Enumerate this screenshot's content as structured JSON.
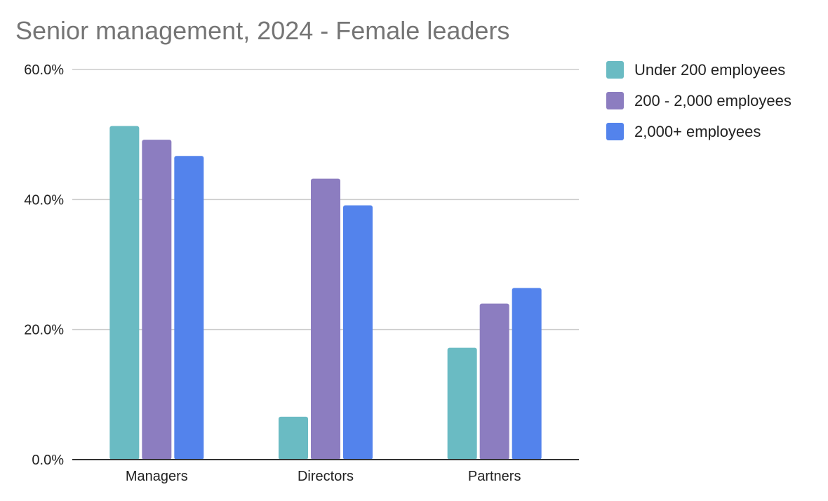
{
  "chart_data": {
    "type": "bar",
    "title": "Senior management, 2024 - Female leaders",
    "xlabel": "",
    "ylabel": "",
    "categories": [
      "Managers",
      "Directors",
      "Partners"
    ],
    "series": [
      {
        "name": "Under 200 employees",
        "color": "#6abbc3",
        "values": [
          51.3,
          6.6,
          17.2
        ]
      },
      {
        "name": "200 - 2,000 employees",
        "color": "#8c7dc0",
        "values": [
          49.2,
          43.2,
          24.0
        ]
      },
      {
        "name": "2,000+ employees",
        "color": "#5383ec",
        "values": [
          46.7,
          39.1,
          26.4
        ]
      }
    ],
    "ylim": [
      0,
      60
    ],
    "yticks": [
      0,
      20,
      40,
      60
    ],
    "ytick_labels": [
      "0.0%",
      "20.0%",
      "40.0%",
      "60.0%"
    ],
    "grid": true,
    "legend_position": "right"
  }
}
